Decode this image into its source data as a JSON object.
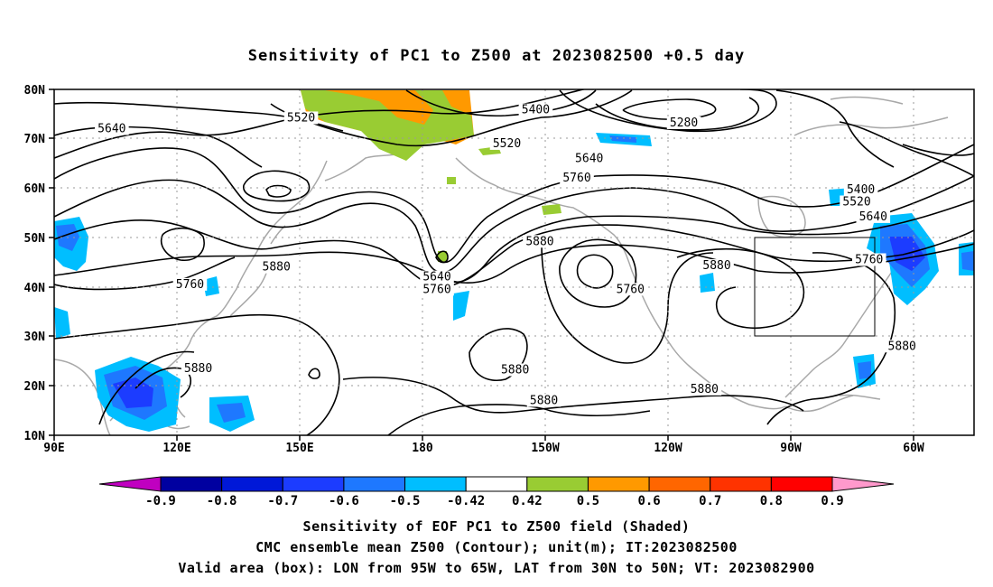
{
  "title": "Sensitivity of PC1 to Z500 at 2023082500 +0.5 day",
  "map": {
    "lat_labels": [
      "80N",
      "70N",
      "60N",
      "50N",
      "40N",
      "30N",
      "20N",
      "10N"
    ],
    "lon_labels": [
      "90E",
      "120E",
      "150E",
      "180",
      "150W",
      "120W",
      "90W",
      "60W"
    ],
    "contour_labels": [
      {
        "text": "5640",
        "lon": 104,
        "lat": 71.5
      },
      {
        "text": "5520",
        "lon": 150,
        "lat": 73.7
      },
      {
        "text": "5400",
        "lon": -153,
        "lat": 75.3
      },
      {
        "text": "5280",
        "lon": -117,
        "lat": 72.7
      },
      {
        "text": "5520",
        "lon": -160,
        "lat": 68.5
      },
      {
        "text": "5640",
        "lon": -140,
        "lat": 65.5
      },
      {
        "text": "5760",
        "lon": -143,
        "lat": 61.5
      },
      {
        "text": "5400",
        "lon": -74,
        "lat": 59.2
      },
      {
        "text": "5520",
        "lon": -75,
        "lat": 56.7
      },
      {
        "text": "5640",
        "lon": -71,
        "lat": 53.7
      },
      {
        "text": "5880",
        "lon": -152,
        "lat": 48.7
      },
      {
        "text": "5880",
        "lon": -109,
        "lat": 43.8
      },
      {
        "text": "5880",
        "lon": 144,
        "lat": 43.5
      },
      {
        "text": "5640",
        "lon": -177,
        "lat": 41.5
      },
      {
        "text": "5760",
        "lon": -177,
        "lat": 39.0
      },
      {
        "text": "5760",
        "lon": -130,
        "lat": 39.0
      },
      {
        "text": "5760",
        "lon": -72,
        "lat": 45.0
      },
      {
        "text": "5760",
        "lon": 123,
        "lat": 40.0
      },
      {
        "text": "5880",
        "lon": -64,
        "lat": 27.5
      },
      {
        "text": "5880",
        "lon": -158,
        "lat": 22.7
      },
      {
        "text": "5880",
        "lon": -151,
        "lat": 16.5
      },
      {
        "text": "5880",
        "lon": 125,
        "lat": 23.0
      },
      {
        "text": "5880",
        "lon": -112,
        "lat": 18.8
      }
    ],
    "valid_box_label": "LON from 95W to 65W, LAT from 30N to 50N"
  },
  "colorbar": {
    "colors": [
      "#c000c0",
      "#0000a0",
      "#0018d8",
      "#1c3cff",
      "#1e78ff",
      "#00beff",
      "#ffffff",
      "#99cc33",
      "#ff9900",
      "#ff6600",
      "#ff3300",
      "#ff0000",
      "#ff99cc"
    ],
    "labels": [
      "-0.9",
      "-0.8",
      "-0.7",
      "-0.6",
      "-0.5",
      "-0.42",
      "0.42",
      "0.5",
      "0.6",
      "0.7",
      "0.8",
      "0.9"
    ]
  },
  "captions": {
    "line1": "Sensitivity of EOF PC1 to Z500 field (Shaded)",
    "line2": "CMC ensemble mean Z500 (Contour); unit(m); IT:2023082500",
    "line3": "Valid area (box): LON from 95W to 65W, LAT from 30N to 50N; VT: 2023082900"
  }
}
